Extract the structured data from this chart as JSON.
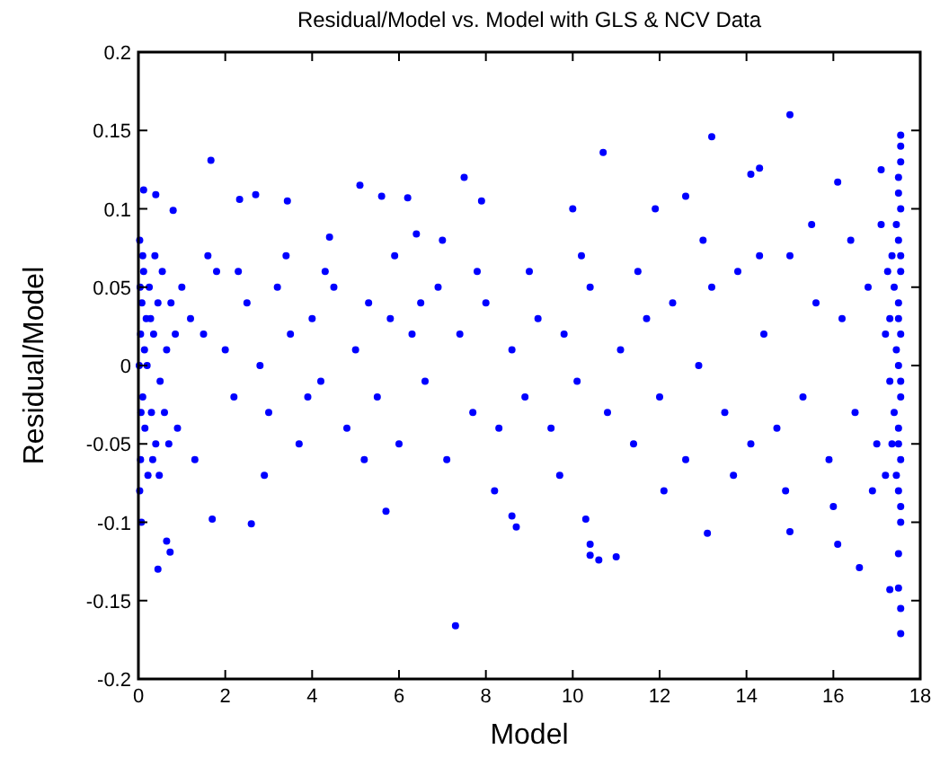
{
  "chart_data": {
    "type": "scatter",
    "title": "Residual/Model vs. Model with GLS & NCV Data",
    "xlabel": "Model",
    "ylabel": "Residual/Model",
    "xlim": [
      0,
      18
    ],
    "ylim": [
      -0.2,
      0.2
    ],
    "xticks": [
      0,
      2,
      4,
      6,
      8,
      10,
      12,
      14,
      16,
      18
    ],
    "yticks": [
      -0.2,
      -0.15,
      -0.1,
      -0.05,
      0,
      0.05,
      0.1,
      0.15,
      0.2
    ],
    "marker": "circle",
    "series": [
      {
        "color": "#0000ff",
        "x": [
          15.0,
          13.2,
          10.7,
          10.0,
          11.9,
          12.6,
          14.1,
          14.3,
          16.1,
          17.1,
          17.55,
          1.67,
          2.7,
          2.33,
          3.43,
          5.1,
          5.6,
          6.2,
          7.5,
          7.9,
          0.12,
          0.4,
          0.8,
          4.4,
          6.4,
          7.3,
          0.45,
          0.73,
          0.65,
          2.6,
          1.7,
          5.7,
          8.7,
          8.6,
          10.3,
          10.4,
          10.4,
          10.6,
          11.0,
          13.1,
          15.0,
          16.6,
          16.1,
          17.3,
          17.55,
          17.55,
          17.5,
          1.0,
          1.2,
          1.5,
          1.8,
          2.0,
          2.2,
          2.5,
          2.8,
          3.0,
          3.2,
          3.5,
          3.7,
          4.0,
          4.2,
          4.5,
          4.8,
          5.0,
          5.3,
          5.5,
          5.8,
          6.0,
          6.3,
          6.6,
          6.9,
          7.1,
          7.4,
          7.7,
          8.0,
          8.3,
          8.6,
          8.9,
          9.2,
          9.5,
          9.8,
          10.1,
          10.4,
          10.8,
          11.1,
          11.4,
          11.7,
          12.0,
          12.3,
          12.6,
          12.9,
          13.2,
          13.5,
          13.8,
          14.1,
          14.4,
          14.7,
          15.0,
          15.3,
          15.6,
          15.9,
          16.2,
          16.5,
          16.8,
          17.0,
          17.2,
          0.9,
          1.3,
          1.6,
          2.3,
          2.9,
          3.4,
          3.9,
          4.3,
          5.2,
          5.9,
          6.5,
          7.0,
          7.8,
          8.2,
          9.0,
          9.7,
          10.2,
          11.5,
          12.1,
          13.0,
          13.7,
          14.3,
          14.9,
          15.5,
          16.0,
          16.4,
          16.9,
          17.1,
          0.03,
          0.05,
          0.08,
          0.1,
          0.05,
          0.12,
          0.15,
          0.03,
          0.2,
          0.25,
          0.3,
          0.18,
          0.35,
          0.4,
          0.45,
          0.5,
          0.55,
          0.6,
          0.07,
          0.1,
          0.22,
          0.28,
          0.33,
          0.02,
          0.04,
          0.06,
          0.14,
          0.38,
          0.48,
          0.65,
          0.7,
          0.75,
          0.85,
          17.55,
          17.5,
          17.55,
          17.5,
          17.55,
          17.5,
          17.55,
          17.5,
          17.55,
          17.5,
          17.55,
          17.5,
          17.55,
          17.45,
          17.4,
          17.45,
          17.4,
          17.45,
          17.35,
          17.3,
          17.35,
          17.3,
          17.55,
          17.5,
          17.55,
          17.5,
          17.55,
          17.5,
          17.55,
          17.5,
          17.25,
          17.2
        ],
        "values": [
          0.16,
          0.146,
          0.136,
          0.1,
          0.1,
          0.108,
          0.122,
          0.126,
          0.117,
          0.125,
          0.147,
          0.131,
          0.109,
          0.106,
          0.105,
          0.115,
          0.108,
          0.107,
          0.12,
          0.105,
          0.112,
          0.109,
          0.099,
          0.082,
          0.084,
          -0.166,
          -0.13,
          -0.119,
          -0.112,
          -0.101,
          -0.098,
          -0.093,
          -0.103,
          -0.096,
          -0.098,
          -0.114,
          -0.121,
          -0.124,
          -0.122,
          -0.107,
          -0.106,
          -0.129,
          -0.114,
          -0.143,
          -0.155,
          -0.171,
          -0.142,
          0.05,
          0.03,
          0.02,
          0.06,
          0.01,
          -0.02,
          0.04,
          0.0,
          -0.03,
          0.05,
          0.02,
          -0.05,
          0.03,
          -0.01,
          0.05,
          -0.04,
          0.01,
          0.04,
          -0.02,
          0.03,
          -0.05,
          0.02,
          -0.01,
          0.05,
          -0.06,
          0.02,
          -0.03,
          0.04,
          -0.04,
          0.01,
          -0.02,
          0.03,
          -0.04,
          0.02,
          -0.01,
          0.05,
          -0.03,
          0.01,
          -0.05,
          0.03,
          -0.02,
          0.04,
          -0.06,
          0.0,
          0.05,
          -0.03,
          0.06,
          -0.05,
          0.02,
          -0.04,
          0.07,
          -0.02,
          0.04,
          -0.06,
          0.03,
          -0.03,
          0.05,
          -0.05,
          0.02,
          -0.04,
          -0.06,
          0.07,
          0.06,
          -0.07,
          0.07,
          -0.02,
          0.06,
          -0.06,
          0.07,
          0.04,
          0.08,
          0.06,
          -0.08,
          0.06,
          -0.07,
          0.07,
          0.06,
          -0.08,
          0.08,
          -0.07,
          0.07,
          -0.08,
          0.09,
          -0.09,
          0.08,
          -0.08,
          0.09,
          0.08,
          -0.06,
          0.04,
          -0.02,
          0.02,
          0.06,
          -0.04,
          -0.08,
          0.0,
          0.05,
          -0.03,
          0.03,
          0.02,
          -0.05,
          0.04,
          -0.01,
          0.06,
          -0.03,
          -0.1,
          0.07,
          -0.07,
          0.03,
          -0.06,
          0.0,
          0.05,
          -0.03,
          0.01,
          0.07,
          -0.07,
          0.01,
          -0.05,
          0.04,
          0.02,
          0.14,
          0.12,
          0.1,
          0.08,
          0.06,
          0.04,
          0.02,
          0.0,
          -0.02,
          -0.04,
          -0.06,
          -0.08,
          -0.1,
          0.09,
          0.05,
          0.01,
          -0.03,
          -0.07,
          0.07,
          -0.01,
          -0.05,
          0.03,
          0.13,
          0.11,
          0.07,
          0.03,
          -0.01,
          -0.05,
          -0.09,
          -0.12,
          0.06,
          -0.07
        ]
      }
    ]
  }
}
